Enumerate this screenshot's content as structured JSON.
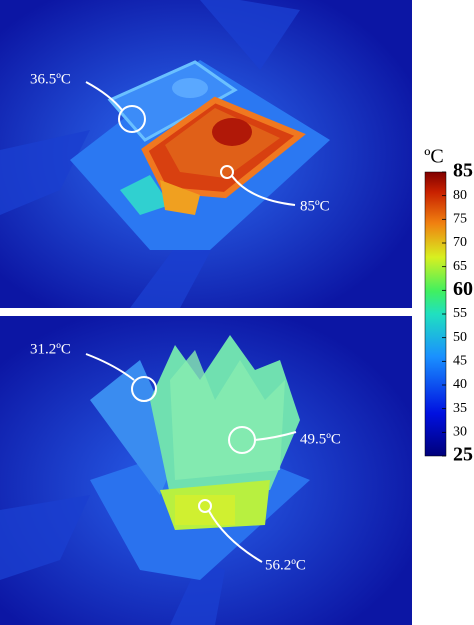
{
  "panels": [
    {
      "annotations": [
        {
          "label": "36.5ºC"
        },
        {
          "label": "85ºC"
        }
      ]
    },
    {
      "annotations": [
        {
          "label": "31.2ºC"
        },
        {
          "label": "49.5ºC"
        },
        {
          "label": "56.2ºC"
        }
      ]
    }
  ],
  "colorbar": {
    "unit": "ºC",
    "min": 25,
    "max": 85,
    "ticks": [
      {
        "value": 85,
        "bold": true
      },
      {
        "value": 80
      },
      {
        "value": 75
      },
      {
        "value": 70
      },
      {
        "value": 65
      },
      {
        "value": 60,
        "bold": true
      },
      {
        "value": 55
      },
      {
        "value": 50
      },
      {
        "value": 45
      },
      {
        "value": 40
      },
      {
        "value": 35
      },
      {
        "value": 30
      },
      {
        "value": 25,
        "bold": true
      }
    ]
  }
}
